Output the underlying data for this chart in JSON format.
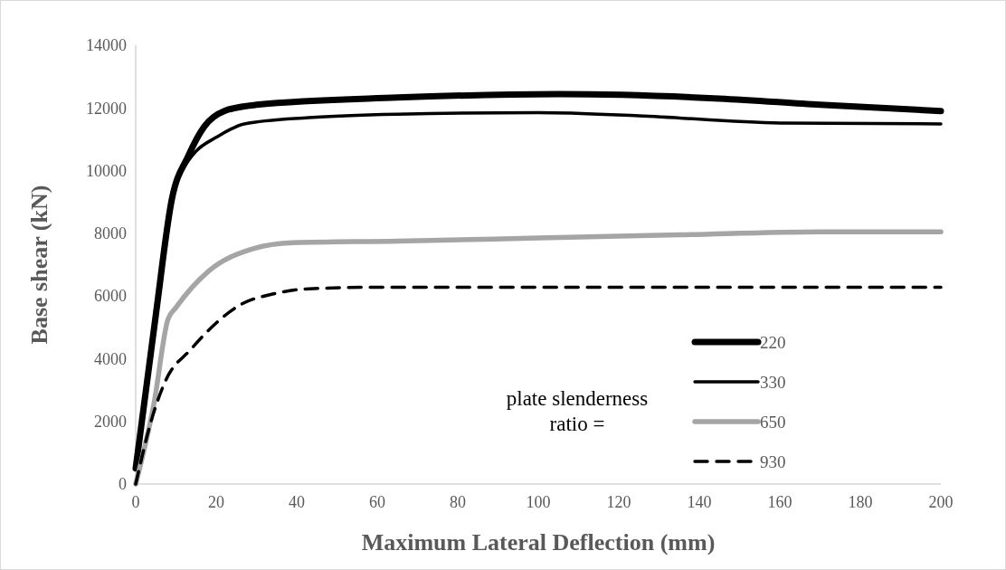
{
  "chart_data": {
    "type": "line",
    "xlabel": "Maximum Lateral Deflection (mm)",
    "ylabel": "Base shear (kN)",
    "legend_title": "plate slenderness ratio =",
    "legend": "bottom right",
    "grid": false,
    "xlim": [
      0,
      200
    ],
    "xticks": [
      0,
      20,
      40,
      60,
      80,
      100,
      120,
      140,
      160,
      180,
      200
    ],
    "ylim": [
      0,
      14000
    ],
    "yticks": [
      0,
      2000,
      4000,
      6000,
      8000,
      10000,
      12000,
      14000
    ],
    "series": [
      {
        "name": "220",
        "color": "#000000",
        "line_style": "solid",
        "x": [
          0,
          5,
          9,
          13,
          17,
          22,
          30,
          65,
          105,
          145,
          170,
          200
        ],
        "values": [
          500,
          5400,
          9100,
          10450,
          11400,
          11900,
          12100,
          12330,
          12440,
          12300,
          12100,
          11900
        ]
      },
      {
        "name": "330",
        "color": "#000000",
        "line_style": "solid",
        "x": [
          0,
          5,
          9,
          13,
          15,
          20,
          27,
          43,
          65,
          100,
          125,
          160,
          200
        ],
        "values": [
          500,
          5400,
          9100,
          10300,
          10620,
          11060,
          11490,
          11690,
          11800,
          11850,
          11750,
          11520,
          11490
        ]
      },
      {
        "name": "650",
        "color": "#a5a5a5",
        "line_style": "solid",
        "x": [
          0,
          4.5,
          8,
          10,
          18,
          29,
          39,
          65,
          100,
          135,
          170,
          200
        ],
        "values": [
          0,
          2540,
          5250,
          5630,
          6780,
          7500,
          7700,
          7750,
          7850,
          7950,
          8050,
          8050
        ]
      },
      {
        "name": "930",
        "color": "#000000",
        "line_style": "dashed",
        "x": [
          0,
          4,
          7.5,
          13.5,
          20,
          26,
          34,
          43,
          60,
          200
        ],
        "values": [
          0,
          2080,
          3320,
          4270,
          5140,
          5720,
          6060,
          6230,
          6280,
          6280
        ]
      }
    ]
  }
}
